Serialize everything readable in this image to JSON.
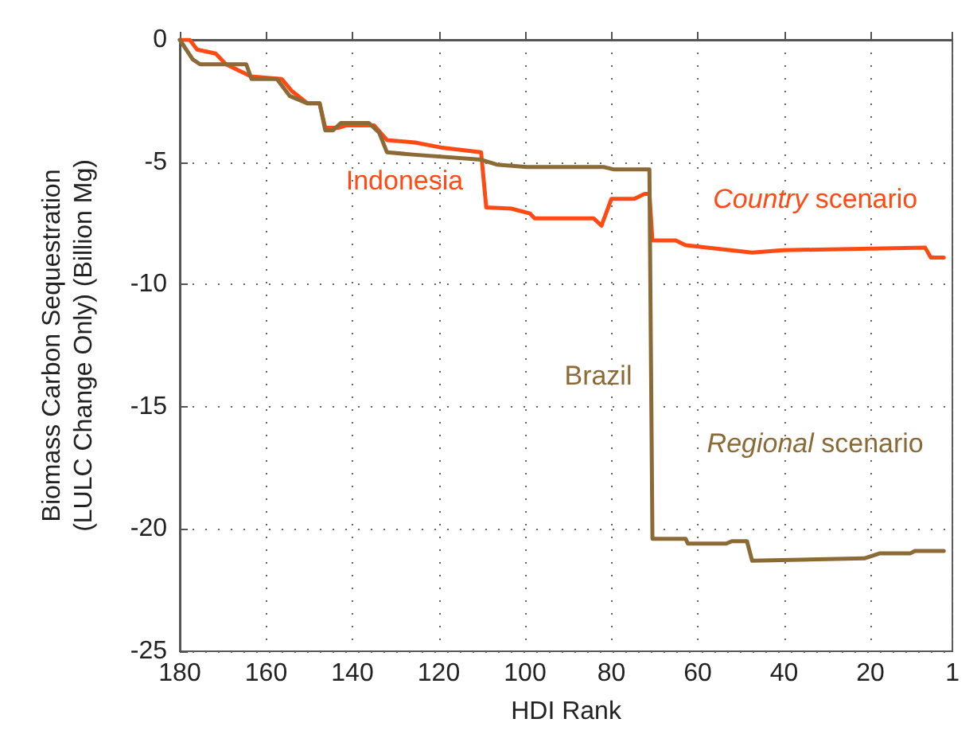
{
  "chart_data": {
    "type": "line",
    "xlabel": "HDI Rank",
    "ylabel": "Biomass Carbon Sequestration\n(LULC Change Only) (Billion Mg)",
    "xlim": [
      180,
      1
    ],
    "xticks": [
      180,
      160,
      140,
      120,
      100,
      80,
      60,
      40,
      20,
      1
    ],
    "ylim": [
      -25,
      0
    ],
    "yticks": [
      -25,
      -20,
      -15,
      -10,
      -5,
      0
    ],
    "grid": true,
    "line_style": "solid",
    "marker": "none",
    "series": [
      {
        "color": "#ff4a14",
        "x": [
          180,
          177.7,
          176,
          171.7,
          169.3,
          163.5,
          156.4,
          154,
          150.4,
          147.6,
          146.3,
          143.3,
          141.5,
          135,
          132,
          125.5,
          119.6,
          110.2,
          109,
          103.2,
          98.9,
          97.8,
          90,
          84.1,
          82.3,
          80,
          74.7,
          72.3,
          71.2,
          70.5,
          65.1,
          62.8,
          47.4,
          40.3,
          7.3,
          6,
          3
        ],
        "values": [
          0,
          0,
          -0.4,
          -0.56,
          -1,
          -1.5,
          -1.6,
          -2.1,
          -2.6,
          -2.6,
          -3.6,
          -3.6,
          -3.5,
          -3.5,
          -4.1,
          -4.2,
          -4.4,
          -4.6,
          -6.85,
          -6.9,
          -7.1,
          -7.3,
          -7.3,
          -7.3,
          -7.6,
          -6.5,
          -6.5,
          -6.3,
          -6.3,
          -8.2,
          -8.2,
          -8.4,
          -8.7,
          -8.6,
          -8.5,
          -8.9,
          -8.9
        ]
      },
      {
        "color": "#8b6a35",
        "x": [
          180,
          177,
          175.3,
          164.6,
          163.4,
          157.5,
          154.5,
          150.4,
          147.6,
          146.3,
          144.5,
          142.7,
          136.2,
          133.8,
          132,
          125.5,
          110.2,
          106.6,
          99.6,
          81.8,
          79.4,
          71.2,
          70.5,
          62.8,
          62.3,
          53.4,
          52.1,
          48.6,
          47.4,
          21.4,
          17.9,
          10.8,
          9.7,
          3
        ],
        "values": [
          0,
          -0.8,
          -1,
          -1,
          -1.6,
          -1.6,
          -2.3,
          -2.6,
          -2.6,
          -3.7,
          -3.7,
          -3.4,
          -3.4,
          -3.8,
          -4.6,
          -4.7,
          -4.9,
          -5.1,
          -5.2,
          -5.2,
          -5.3,
          -5.3,
          -20.4,
          -20.4,
          -20.6,
          -20.6,
          -20.5,
          -20.5,
          -21.3,
          -21.2,
          -21,
          -21,
          -20.9,
          -20.9
        ]
      }
    ],
    "annotations": [
      "Indonesia",
      "Brazil",
      "Country scenario",
      "Regional scenario"
    ]
  }
}
